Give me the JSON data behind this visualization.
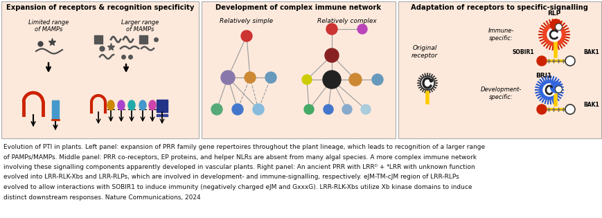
{
  "fig_width": 8.7,
  "fig_height": 3.15,
  "dpi": 100,
  "bg_color": "#ffffff",
  "panel_bg": "#fce9dc",
  "panel1_title": "Expansion of receptors & recognition specificity",
  "panel2_title": "Development of complex immune network",
  "panel3_title": "Adaptation of receptors to specific-signalling",
  "caption_line1": "Evolution of PTI in plants. Left panel: expansion of PRR family gene repertoires throughout the plant lineage, which leads to recognition of a larger range",
  "caption_line2": "of PAMPs/MAMPs. Middle panel: PRR co-receptors, EP proteins, and helper NLRs are absent from many algal species. A more complex immune network",
  "caption_line3": "involving these signalling components apparently developed in vascular plants. Right panel: An ancient PRR with LRRᴰ + ⁴LRR with unknown function",
  "caption_line4": "evolved into LRR-RLK-Xbs and LRR-RLPs, which are involved in development- and immune-signalling, respectively. eJM-TM-cJM region of LRR-RLPs",
  "caption_line5": "evolved to allow interactions with SOBIR1 to induce immunity (negatively charged eJM and GxxxG). LRR-RLK-Xbs utilize Xb kinase domains to induce",
  "caption_line6": "distinct downstream responses. Nature Communications, 2024",
  "caption_fontsize": 6.5,
  "title_fontsize": 7.5
}
